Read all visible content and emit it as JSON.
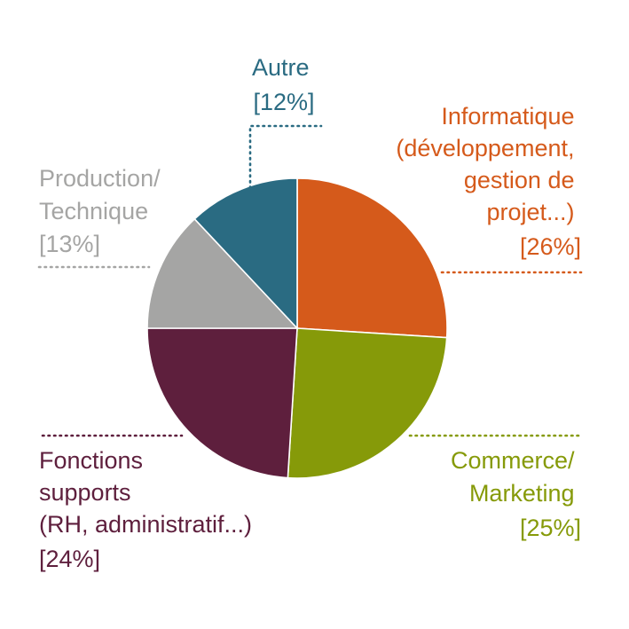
{
  "chart_data": {
    "type": "pie",
    "slices": [
      {
        "name_lines": [
          "Informatique",
          "(développement,",
          "gestion de",
          "projet...)"
        ],
        "percent_label": "[26%]",
        "value": 26,
        "color": "#d55a1b"
      },
      {
        "name_lines": [
          "Commerce/",
          "Marketing"
        ],
        "percent_label": "[25%]",
        "value": 25,
        "color": "#869a09"
      },
      {
        "name_lines": [
          "Fonctions",
          "supports",
          "(RH, administratif...)"
        ],
        "percent_label": "[24%]",
        "value": 24,
        "color": "#5e1f3d"
      },
      {
        "name_lines": [
          "Production/",
          "Technique"
        ],
        "percent_label": "[13%]",
        "value": 13,
        "color": "#a5a5a4"
      },
      {
        "name_lines": [
          "Autre"
        ],
        "percent_label": "[12%]",
        "value": 12,
        "color": "#2a6b82"
      }
    ]
  }
}
